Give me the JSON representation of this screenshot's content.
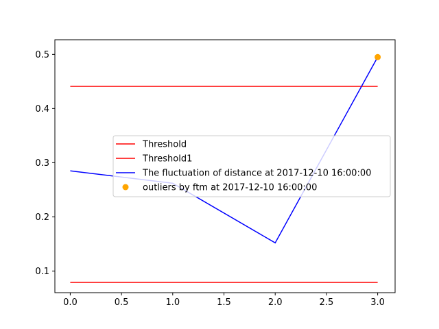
{
  "chart_data": {
    "type": "line",
    "title": "",
    "xlabel": "",
    "ylabel": "",
    "xlim": [
      -0.15,
      3.17
    ],
    "ylim": [
      0.06,
      0.527
    ],
    "xticks": [
      0.0,
      0.5,
      1.0,
      1.5,
      2.0,
      2.5,
      3.0
    ],
    "xtick_labels": [
      "0.0",
      "0.5",
      "1.0",
      "1.5",
      "2.0",
      "2.5",
      "3.0"
    ],
    "yticks": [
      0.1,
      0.2,
      0.3,
      0.4,
      0.5
    ],
    "ytick_labels": [
      "0.1",
      "0.2",
      "0.3",
      "0.4",
      "0.5"
    ],
    "grid": false,
    "legend_position": "center-right",
    "series": [
      {
        "name": "Threshold",
        "kind": "line",
        "color": "#ff0000",
        "x": [
          0,
          3
        ],
        "y": [
          0.441,
          0.441
        ]
      },
      {
        "name": "Threshold1",
        "kind": "line",
        "color": "#ff0000",
        "x": [
          0,
          3
        ],
        "y": [
          0.079,
          0.079
        ]
      },
      {
        "name": "The fluctuation of distance at 2017-12-10 16:00:00",
        "kind": "line",
        "color": "#0000ff",
        "x": [
          0,
          1,
          2,
          3
        ],
        "y": [
          0.285,
          0.262,
          0.152,
          0.495
        ]
      },
      {
        "name": "outliers by ftm at 2017-12-10 16:00:00",
        "kind": "scatter",
        "color": "#ffa500",
        "x": [
          3
        ],
        "y": [
          0.495
        ]
      }
    ]
  }
}
